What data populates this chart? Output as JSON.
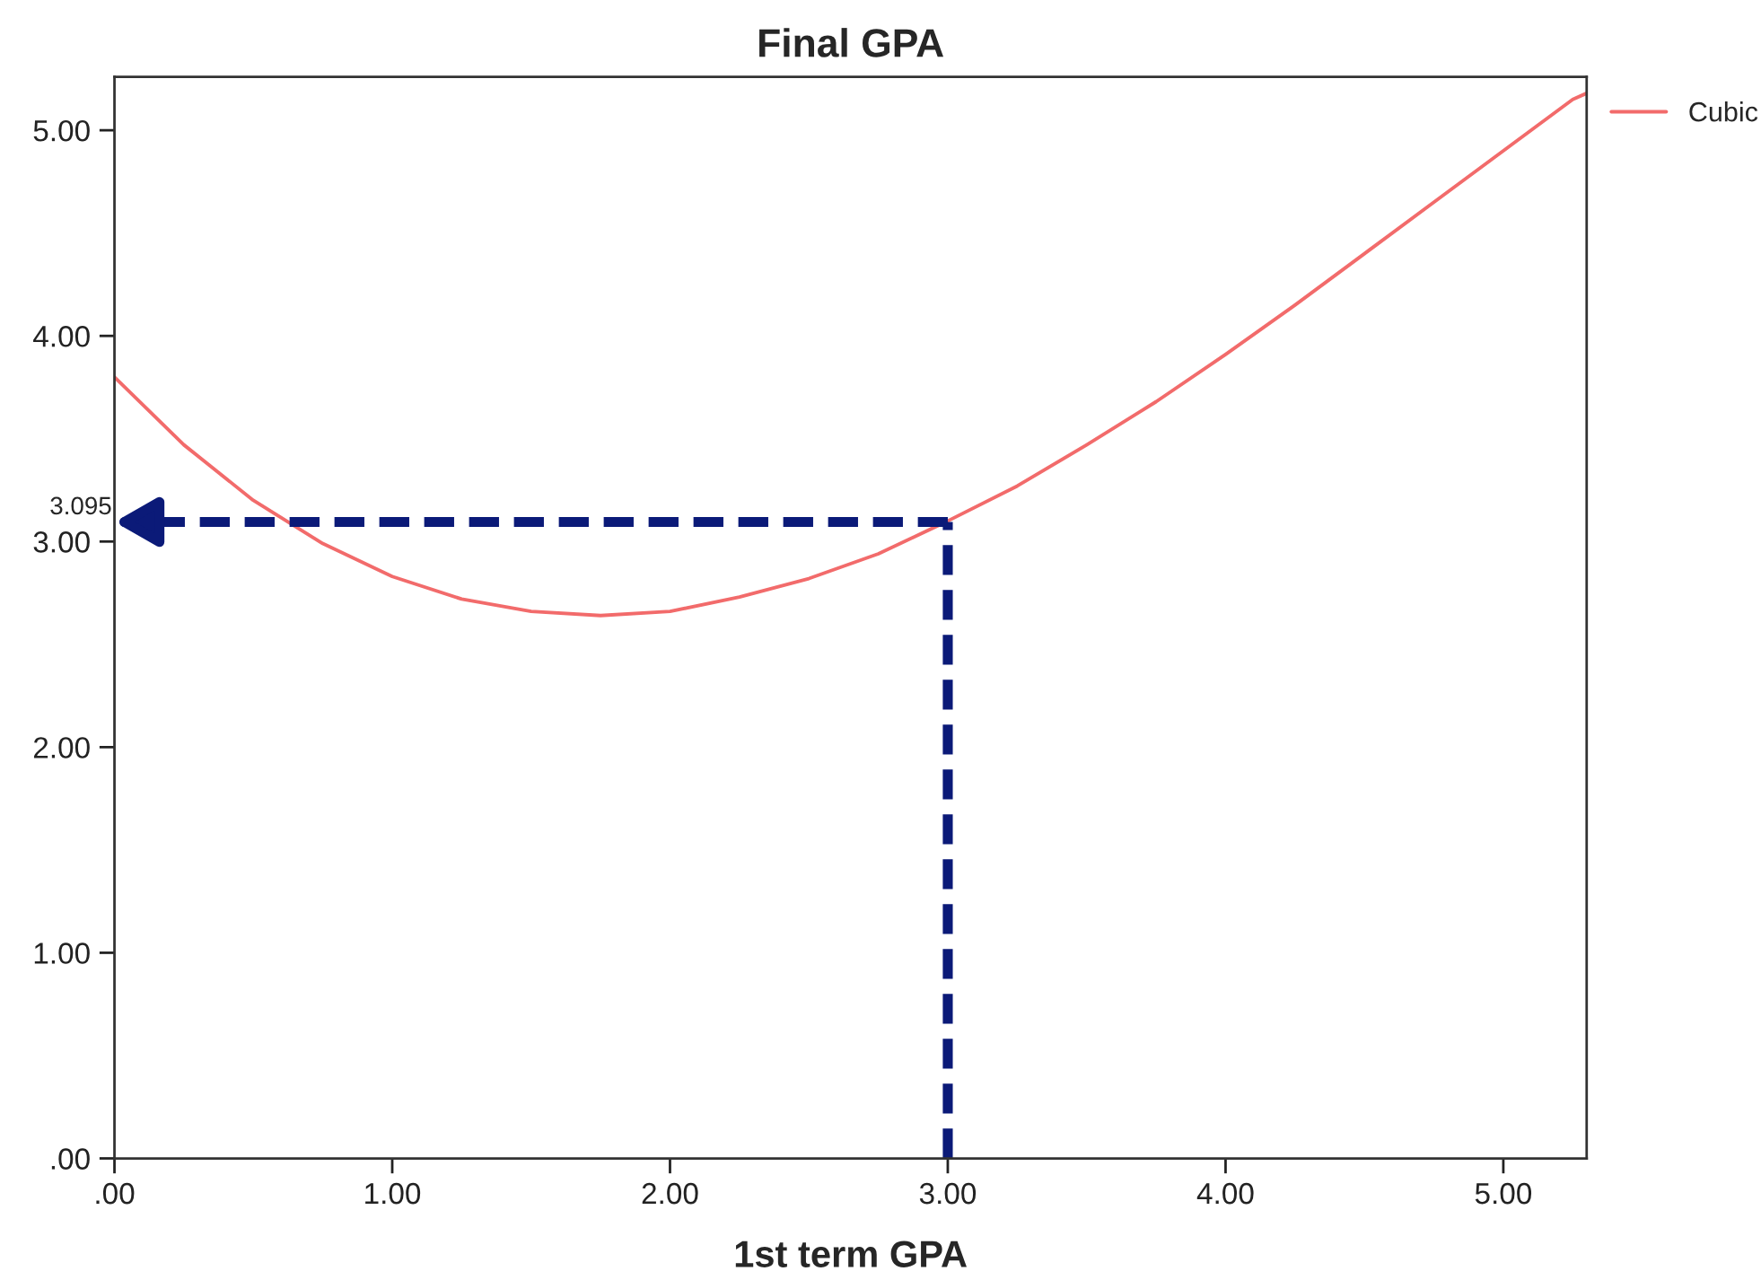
{
  "chart_data": {
    "type": "line",
    "title": "Final GPA",
    "xlabel": "1st term GPA",
    "x": [
      0,
      0.25,
      0.5,
      0.75,
      1.0,
      1.25,
      1.5,
      1.75,
      2.0,
      2.25,
      2.5,
      2.75,
      3.0,
      3.25,
      3.5,
      3.75,
      4.0,
      4.25,
      4.5,
      4.75,
      5.0,
      5.25,
      5.3
    ],
    "series": [
      {
        "name": "Cubic",
        "color": "#f26b6b",
        "values": [
          3.8,
          3.47,
          3.2,
          2.99,
          2.83,
          2.72,
          2.66,
          2.64,
          2.66,
          2.73,
          2.82,
          2.94,
          3.1,
          3.27,
          3.47,
          3.68,
          3.91,
          4.15,
          4.4,
          4.65,
          4.9,
          5.15,
          5.18
        ]
      }
    ],
    "xlim": [
      0,
      5.3
    ],
    "ylim": [
      0,
      5.26
    ],
    "xticks": [
      {
        "value": 0,
        "label": ".00"
      },
      {
        "value": 1,
        "label": "1.00"
      },
      {
        "value": 2,
        "label": "2.00"
      },
      {
        "value": 3,
        "label": "3.00"
      },
      {
        "value": 4,
        "label": "4.00"
      },
      {
        "value": 5,
        "label": "5.00"
      }
    ],
    "yticks": [
      {
        "value": 0,
        "label": ".00"
      },
      {
        "value": 1,
        "label": "1.00"
      },
      {
        "value": 2,
        "label": "2.00"
      },
      {
        "value": 3,
        "label": "3.00"
      },
      {
        "value": 4,
        "label": "4.00"
      },
      {
        "value": 5,
        "label": "5.00"
      }
    ],
    "ref_lines": [
      {
        "axis": "x",
        "value": 3,
        "color": "#0b1a78",
        "line_style": "dashed"
      },
      {
        "axis": "y",
        "value": 3.095,
        "label": "3.095",
        "color": "#0b1a78",
        "line_style": "dashed"
      }
    ],
    "grid": false,
    "legend": "top right",
    "marker": "none",
    "line_style": "solid"
  }
}
